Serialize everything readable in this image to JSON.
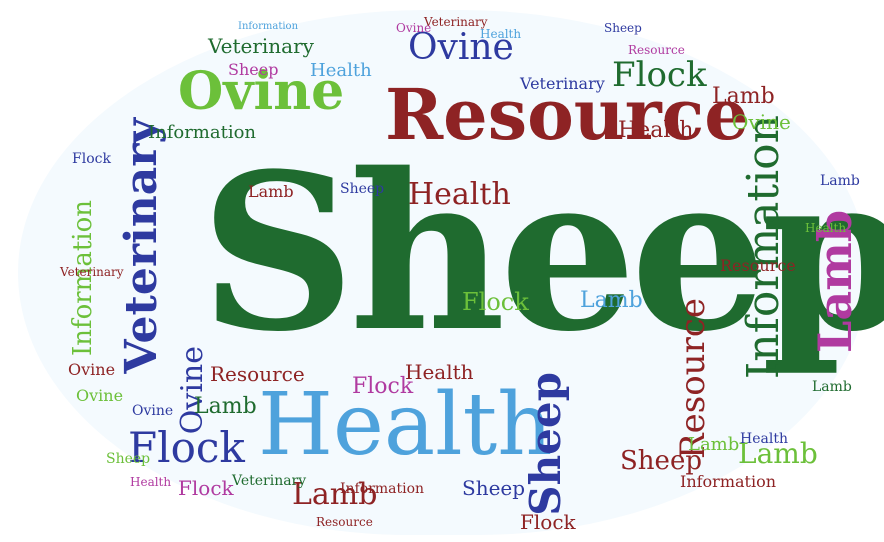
{
  "words": {
    "sheep": "Sheep",
    "resource": "Resource",
    "health": "Health",
    "information": "Information",
    "veterinary": "Veterinary",
    "ovine": "Ovine",
    "lamb": "Lamb",
    "flock": "Flock"
  },
  "colors": {
    "dark_green": "#1f6b2f",
    "dark_red": "#8e2324",
    "navy": "#2e3aa0",
    "light_blue": "#4ea2dc",
    "light_green": "#6cc03a",
    "magenta": "#b03aa0"
  }
}
